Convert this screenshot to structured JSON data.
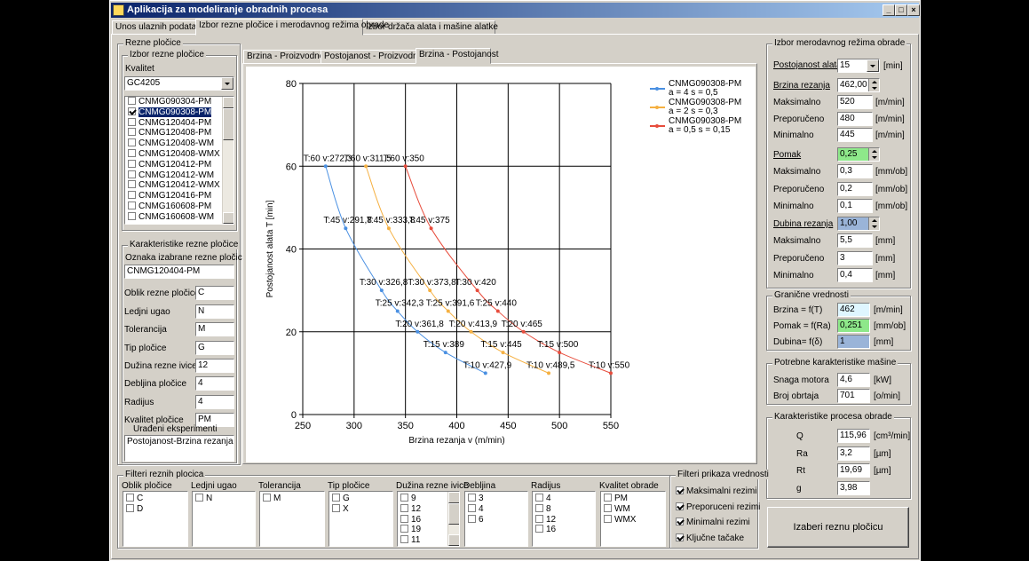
{
  "window": {
    "title": "Aplikacija za modeliranje obradnih procesa",
    "min": "_",
    "max": "□",
    "close": "×"
  },
  "main_tabs": [
    {
      "label": "Unos ulaznih podataka"
    },
    {
      "label": "Izbor rezne pločice i merodavnog režima obrade"
    },
    {
      "label": "Izbor držača alata i mašine alatke"
    }
  ],
  "rezne_plocice": {
    "group_title": "Rezne pločice",
    "izbor_title": "Izbor rezne pločice",
    "kvalitet_label": "Kvalitet",
    "kvalitet_value": "GC4205",
    "list": [
      {
        "label": "CNMG090304-PM",
        "checked": false,
        "selected": false
      },
      {
        "label": "CNMG090308-PM",
        "checked": true,
        "selected": true
      },
      {
        "label": "CNMG120404-PM",
        "checked": false,
        "selected": false
      },
      {
        "label": "CNMG120408-PM",
        "checked": false,
        "selected": false
      },
      {
        "label": "CNMG120408-WM",
        "checked": false,
        "selected": false
      },
      {
        "label": "CNMG120408-WMX",
        "checked": false,
        "selected": false
      },
      {
        "label": "CNMG120412-PM",
        "checked": false,
        "selected": false
      },
      {
        "label": "CNMG120412-WM",
        "checked": false,
        "selected": false
      },
      {
        "label": "CNMG120412-WMX",
        "checked": false,
        "selected": false
      },
      {
        "label": "CNMG120416-PM",
        "checked": false,
        "selected": false
      },
      {
        "label": "CNMG160608-PM",
        "checked": false,
        "selected": false
      },
      {
        "label": "CNMG160608-WM",
        "checked": false,
        "selected": false
      }
    ]
  },
  "karakteristike": {
    "title": "Karakteristike rezne pločice",
    "oznaka_label": "Oznaka izabrane rezne pločice",
    "oznaka_value": "CNMG120404-PM",
    "fields": [
      {
        "label": "Oblik rezne pločice",
        "value": "C"
      },
      {
        "label": "Ledjni ugao",
        "value": "N"
      },
      {
        "label": "Tolerancija",
        "value": "M"
      },
      {
        "label": "Tip pločice",
        "value": "G"
      },
      {
        "label": "Dužina rezne ivice",
        "value": "12"
      },
      {
        "label": "Debljina pločice",
        "value": "4"
      },
      {
        "label": "Radijus",
        "value": "4"
      },
      {
        "label": "Kvalitet  pločice",
        "value": "PM"
      }
    ],
    "uradjeni_title": "Urađeni eksperimenti",
    "uradjeni_value": "Postojanost-Brzina rezanja"
  },
  "chart_tabs": [
    {
      "label": "Brzina - Proizvodnost"
    },
    {
      "label": "Postojanost - Proizvodnost"
    },
    {
      "label": "Brzina - Postojanost"
    }
  ],
  "chart_data": {
    "type": "line",
    "title": "",
    "xlabel": "Brzina rezanja v (m/min)",
    "ylabel": "Postojanost alata T [min]",
    "xlim": [
      250,
      550
    ],
    "ylim": [
      0,
      80
    ],
    "xticks": [
      250,
      300,
      350,
      400,
      450,
      500,
      550
    ],
    "yticks": [
      0,
      20,
      40,
      60,
      80
    ],
    "grid": true,
    "legend_position": "top-right",
    "series": [
      {
        "name": "CNMG090308-PM",
        "sub": "a = 4   s = 0,5",
        "color": "#4a90e2",
        "points": [
          [
            272.3,
            60
          ],
          [
            291.8,
            45
          ],
          [
            326.8,
            30
          ],
          [
            342.3,
            25
          ],
          [
            361.8,
            20
          ],
          [
            389,
            15
          ],
          [
            427.9,
            10
          ]
        ],
        "labels": [
          "T:60 v:272,3",
          "T:45 v:291,8",
          "T:30 v:326,8",
          "T:25 v:342,3",
          "T:20 v:361,8",
          "T:15 v:389",
          "T:10 v:427,9"
        ]
      },
      {
        "name": "CNMG090308-PM",
        "sub": "a = 2   s = 0,3",
        "color": "#f5b041",
        "points": [
          [
            311.5,
            60
          ],
          [
            333.8,
            45
          ],
          [
            373.8,
            30
          ],
          [
            391.6,
            25
          ],
          [
            413.9,
            20
          ],
          [
            445,
            15
          ],
          [
            489.5,
            10
          ]
        ],
        "labels": [
          "T:60 v:311,5",
          "T:45 v:333,8",
          "T:30 v:373,8",
          "T:25 v:391,6",
          "T:20 v:413,9",
          "T:15 v:445",
          "T:10 v:489,5"
        ]
      },
      {
        "name": "CNMG090308-PM",
        "sub": "a = 0,5   s = 0,15",
        "color": "#e74c3c",
        "points": [
          [
            350,
            60
          ],
          [
            375,
            45
          ],
          [
            420,
            30
          ],
          [
            440,
            25
          ],
          [
            465,
            20
          ],
          [
            500,
            15
          ],
          [
            550,
            10
          ]
        ],
        "labels": [
          "T:60 v:350",
          "T:45 v:375",
          "T:30 v:420",
          "T:25 v:440",
          "T:20 v:465",
          "T:15 v:500",
          "T:10 v:550"
        ]
      }
    ]
  },
  "izbor_rezima": {
    "title": "Izbor merodavnog režima obrade",
    "postojanost_label": "Postojanost alata",
    "postojanost_value": "15",
    "postojanost_unit": "[min]",
    "brzina_label": "Brzina rezanja",
    "brzina_value": "462,00",
    "brzina_rows": [
      {
        "label": "Maksimalno",
        "value": "520",
        "unit": "[m/min]"
      },
      {
        "label": "Preporučeno",
        "value": "480",
        "unit": "[m/min]"
      },
      {
        "label": "Minimalno",
        "value": "445",
        "unit": "[m/min]"
      }
    ],
    "pomak_label": "Pomak",
    "pomak_value": "0,25",
    "pomak_rows": [
      {
        "label": "Maksimalno",
        "value": "0,3",
        "unit": "[mm/ob]"
      },
      {
        "label": "Preporučeno",
        "value": "0,2",
        "unit": "[mm/ob]"
      },
      {
        "label": "Minimalno",
        "value": "0,1",
        "unit": "[mm/ob]"
      }
    ],
    "dubina_label": "Dubina rezanja",
    "dubina_value": "1,00",
    "dubina_rows": [
      {
        "label": "Maksimalno",
        "value": "5,5",
        "unit": "[mm]"
      },
      {
        "label": "Preporučeno",
        "value": "3",
        "unit": "[mm]"
      },
      {
        "label": "Minimalno",
        "value": "0,4",
        "unit": "[mm]"
      }
    ]
  },
  "granicne": {
    "title": "Granične vrednosti",
    "rows": [
      {
        "label": "Brzina  = f(T)",
        "value": "462",
        "unit": "[m/min]"
      },
      {
        "label": "Pomak = f(Ra)",
        "value": "0,251",
        "unit": "[mm/ob]"
      },
      {
        "label": "Dubina= f(δ)",
        "value": "1",
        "unit": "[mm]"
      }
    ]
  },
  "masina": {
    "title": "Potrebne karakteristike mašine",
    "rows": [
      {
        "label": "Snaga motora",
        "value": "4,6",
        "unit": "[kW]"
      },
      {
        "label": "Broj obrtaja",
        "value": "701",
        "unit": "[o/min]"
      }
    ]
  },
  "proces": {
    "title": "Karakteristike procesa obrade",
    "rows": [
      {
        "label": "Q",
        "value": "115,96",
        "unit": "[cm³/min]"
      },
      {
        "label": "Ra",
        "value": "3,2",
        "unit": "[µm]"
      },
      {
        "label": "Rt",
        "value": "19,69",
        "unit": "[µm]"
      },
      {
        "label": "g",
        "value": "3,98",
        "unit": ""
      }
    ]
  },
  "filteri": {
    "title": "Filteri reznih plocica",
    "columns": [
      {
        "header": "Oblik pločice",
        "items": [
          "C",
          "D"
        ]
      },
      {
        "header": "Ledjni ugao",
        "items": [
          "N"
        ]
      },
      {
        "header": "Tolerancija",
        "items": [
          "M"
        ]
      },
      {
        "header": "Tip pločice",
        "items": [
          "G",
          "X"
        ]
      },
      {
        "header": "Dužina rezne ivice",
        "items": [
          "9",
          "12",
          "16",
          "19",
          "11"
        ]
      },
      {
        "header": "Debljina",
        "items": [
          "3",
          "4",
          "6"
        ]
      },
      {
        "header": "Radijus",
        "items": [
          "4",
          "8",
          "12",
          "16"
        ]
      },
      {
        "header": "Kvalitet obrade",
        "items": [
          "PM",
          "WM",
          "WMX"
        ]
      }
    ]
  },
  "filteri_prikaza": {
    "title": "Filteri prikaza vrednosti",
    "items": [
      {
        "label": "Maksimalni rezimi",
        "checked": true
      },
      {
        "label": "Preporuceni rezimi",
        "checked": true
      },
      {
        "label": "Minimalni rezimi",
        "checked": true
      },
      {
        "label": "Ključne tačake",
        "checked": true
      }
    ]
  },
  "izaberi_button": "Izaberi reznu pločicu"
}
